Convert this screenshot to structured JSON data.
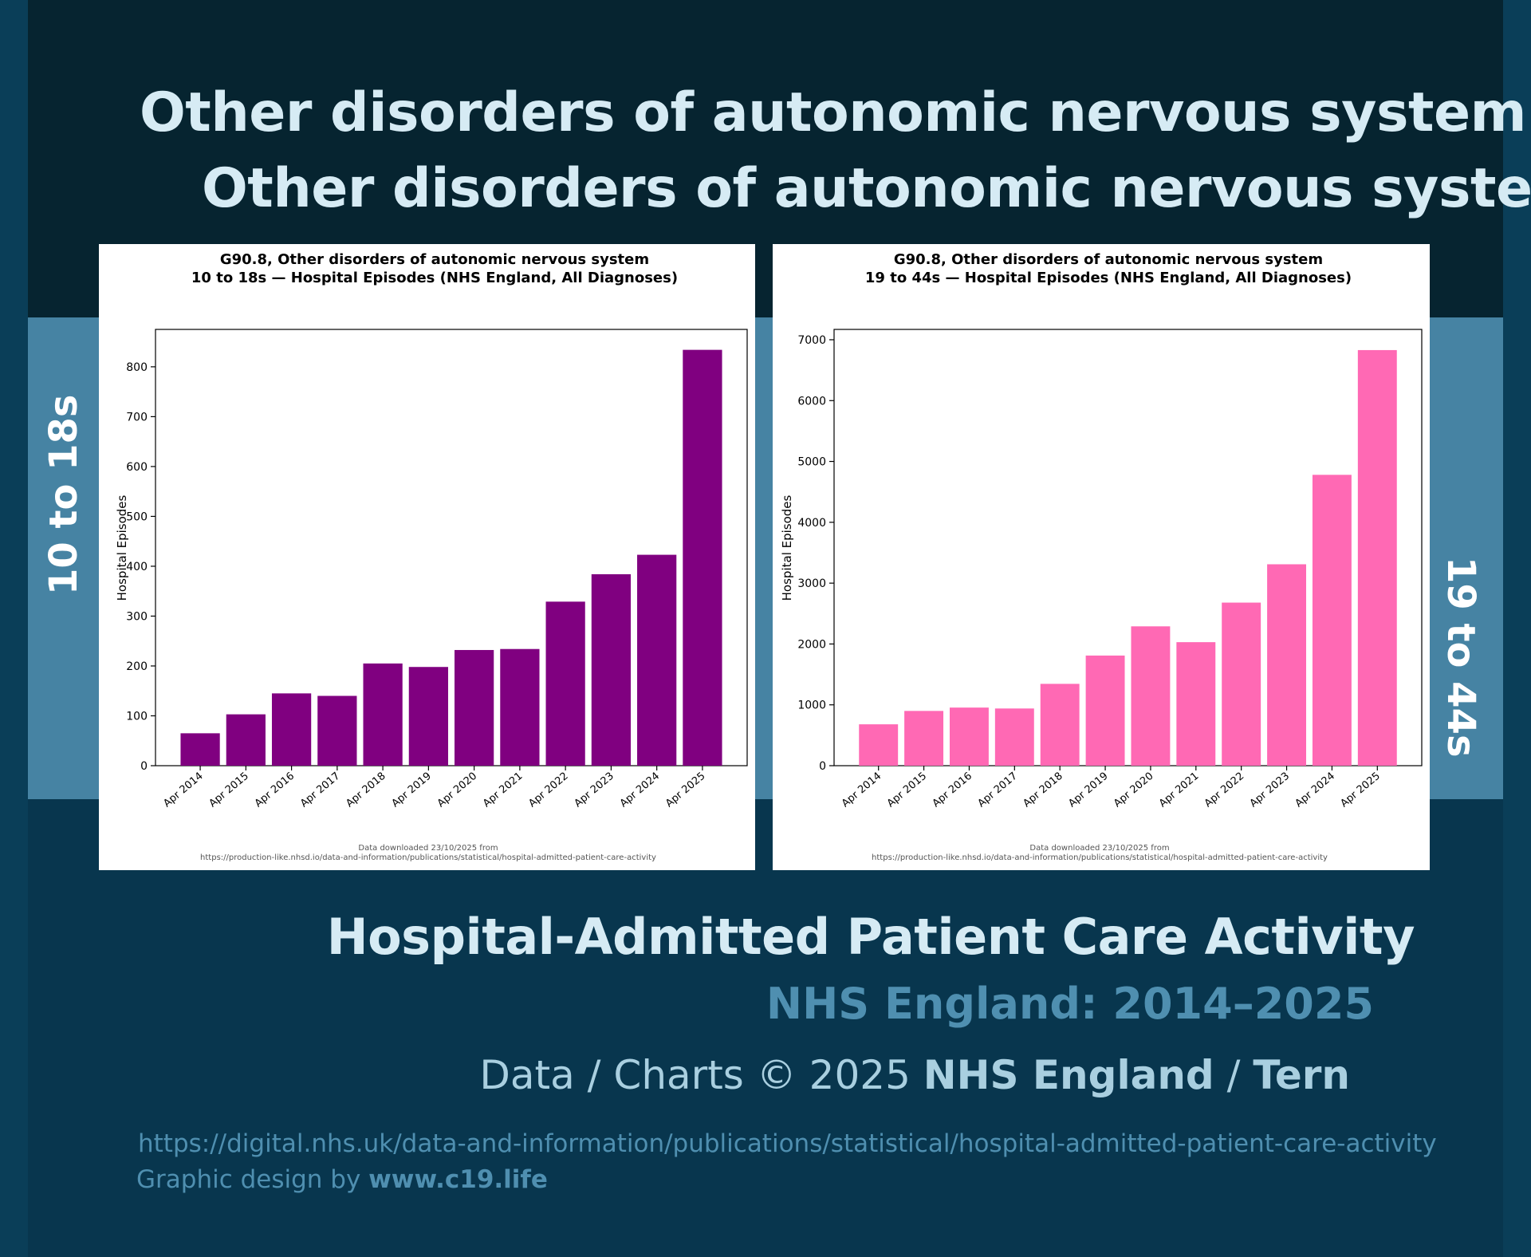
{
  "header": {
    "title_line1": "Other disorders of autonomic nervous system",
    "title_line2": "Other disorders of autonomic nervous system"
  },
  "side_labels": {
    "left": "10 to 18s",
    "right": "19 to 44s"
  },
  "colors": {
    "background": "#08364e",
    "top_band": "#062430",
    "blue_band": "#4683a3",
    "title_text": "#d6ebf4",
    "accent_text": "#4f8fb0",
    "left_bars": "#800080",
    "right_bars": "#ff69b4"
  },
  "chart_data": [
    {
      "type": "bar",
      "title_line1": "G90.8, Other disorders of autonomic nervous system",
      "title_line2": "10 to 18s — Hospital Episodes (NHS England, All Diagnoses)",
      "xlabel": "",
      "ylabel": "Hospital Episodes",
      "categories": [
        "Apr 2014",
        "Apr 2015",
        "Apr 2016",
        "Apr 2017",
        "Apr 2018",
        "Apr 2019",
        "Apr 2020",
        "Apr 2021",
        "Apr 2022",
        "Apr 2023",
        "Apr 2024",
        "Apr 2025"
      ],
      "values": [
        65,
        103,
        145,
        140,
        205,
        198,
        232,
        234,
        329,
        384,
        423,
        834
      ],
      "ylim": [
        0,
        875
      ],
      "yticks": [
        0,
        100,
        200,
        300,
        400,
        500,
        600,
        700,
        800
      ],
      "bar_color": "#800080",
      "source_line1": "Data downloaded 23/10/2025 from",
      "source_line2": "https://production-like.nhsd.io/data-and-information/publications/statistical/hospital-admitted-patient-care-activity"
    },
    {
      "type": "bar",
      "title_line1": "G90.8, Other disorders of autonomic nervous system",
      "title_line2": "19 to 44s — Hospital Episodes (NHS England, All Diagnoses)",
      "xlabel": "",
      "ylabel": "Hospital Episodes",
      "categories": [
        "Apr 2014",
        "Apr 2015",
        "Apr 2016",
        "Apr 2017",
        "Apr 2018",
        "Apr 2019",
        "Apr 2020",
        "Apr 2021",
        "Apr 2022",
        "Apr 2023",
        "Apr 2024",
        "Apr 2025"
      ],
      "values": [
        680,
        900,
        955,
        940,
        1345,
        1810,
        2290,
        2030,
        2680,
        3310,
        4780,
        6830
      ],
      "ylim": [
        0,
        7170
      ],
      "yticks": [
        0,
        1000,
        2000,
        3000,
        4000,
        5000,
        6000,
        7000
      ],
      "bar_color": "#ff69b4",
      "source_line1": "Data downloaded 23/10/2025 from",
      "source_line2": "https://production-like.nhsd.io/data-and-information/publications/statistical/hospital-admitted-patient-care-activity"
    }
  ],
  "footer": {
    "title": "Hospital-Admitted Patient Care Activity",
    "subtitle": "NHS England: 2014–2025",
    "credit_prefix": "Data / Charts © 2025 ",
    "credit_org": "NHS England",
    "credit_sep": " / ",
    "credit_author": "Tern",
    "url": "https://digital.nhs.uk/data-and-information/publications/statistical/hospital-admitted-patient-care-activity",
    "design_prefix": "Graphic design by ",
    "design_site": "www.c19.life"
  }
}
